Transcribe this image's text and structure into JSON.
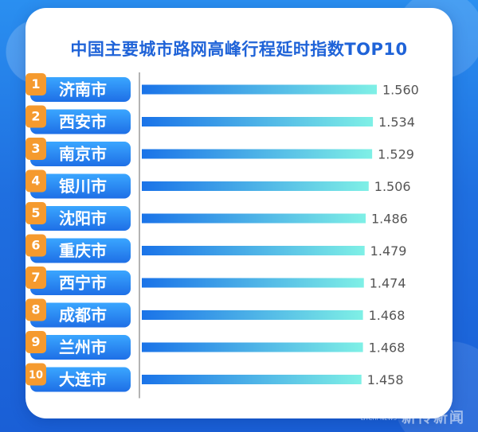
{
  "title": "中国主要城市路网高峰行程延时指数TOP10",
  "watermark": "新传新闻",
  "watermark_small": "LITCHI NEWS",
  "colors": {
    "title": "#1f63d8",
    "label_bg_top": "#3aa6ff",
    "label_bg_bottom": "#1e6fe6",
    "rank_badge": "#f59a2e",
    "bar_start": "#1a73e8",
    "bar_end": "#7ff0e6",
    "value_text": "#555555"
  },
  "chart_data": {
    "type": "bar",
    "orientation": "horizontal",
    "title": "中国主要城市路网高峰行程延时指数TOP10",
    "ranks": [
      "1",
      "2",
      "3",
      "4",
      "5",
      "6",
      "7",
      "8",
      "9",
      "10"
    ],
    "categories": [
      "济南市",
      "西安市",
      "南京市",
      "银川市",
      "沈阳市",
      "重庆市",
      "西宁市",
      "成都市",
      "兰州市",
      "大连市"
    ],
    "values": [
      1.56,
      1.534,
      1.529,
      1.506,
      1.486,
      1.479,
      1.474,
      1.468,
      1.468,
      1.458
    ],
    "value_labels": [
      "1.560",
      "1.534",
      "1.529",
      "1.506",
      "1.486",
      "1.479",
      "1.474",
      "1.468",
      "1.468",
      "1.458"
    ],
    "xlim": [
      0,
      1.56
    ],
    "grid": false,
    "legend": "none"
  }
}
